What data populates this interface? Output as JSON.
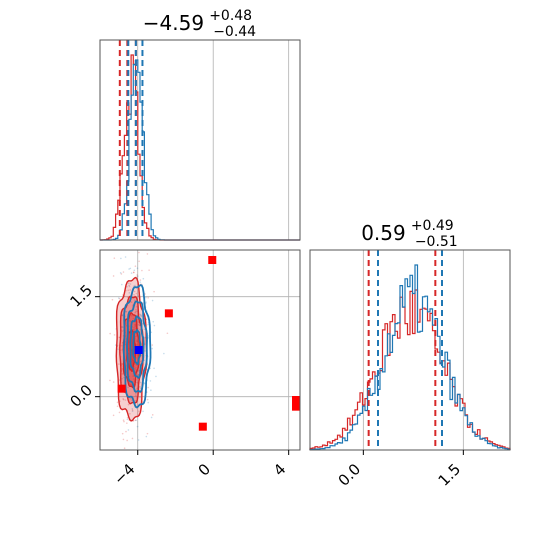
{
  "chart_data": {
    "type": "corner",
    "parameters": [
      {
        "title_main": "−4.59",
        "title_plus": "+0.48",
        "title_minus": "−0.44",
        "range": [
          -6,
          4.6
        ],
        "ticks": [
          {
            "value": -4,
            "label": "−4"
          },
          {
            "value": 0,
            "label": "0"
          },
          {
            "value": 4,
            "label": "4"
          }
        ],
        "quantile_lines": {
          "red": [
            -4.95,
            -4.55,
            -4.1
          ],
          "blue": [
            -4.5,
            -4.1,
            -3.75
          ]
        }
      },
      {
        "title_main": "0.59",
        "title_plus": "+0.49",
        "title_minus": "−0.51",
        "range": [
          -0.8,
          2.2
        ],
        "ticks": [
          {
            "value": 0.0,
            "label": "0.0"
          },
          {
            "value": 1.5,
            "label": "1.5"
          }
        ],
        "quantile_lines": {
          "red": [
            0.08,
            1.08
          ],
          "blue": [
            0.22,
            1.18
          ]
        }
      }
    ],
    "series": [
      {
        "color": "#d62728",
        "mode": [
          -4.35,
          0.7
        ],
        "spread": [
          0.38,
          0.5
        ]
      },
      {
        "color": "#1f77b4",
        "mode": [
          -4.05,
          0.75
        ],
        "spread": [
          0.35,
          0.45
        ]
      }
    ],
    "marker_points": {
      "red": [
        [
          -0.05,
          2.05
        ],
        [
          -2.35,
          1.25
        ],
        [
          -4.85,
          0.12
        ],
        [
          -0.55,
          -0.45
        ],
        [
          4.4,
          -0.15
        ],
        [
          4.55,
          -0.05
        ]
      ],
      "blue": [
        [
          -3.95,
          0.7
        ]
      ]
    },
    "grid": true
  }
}
